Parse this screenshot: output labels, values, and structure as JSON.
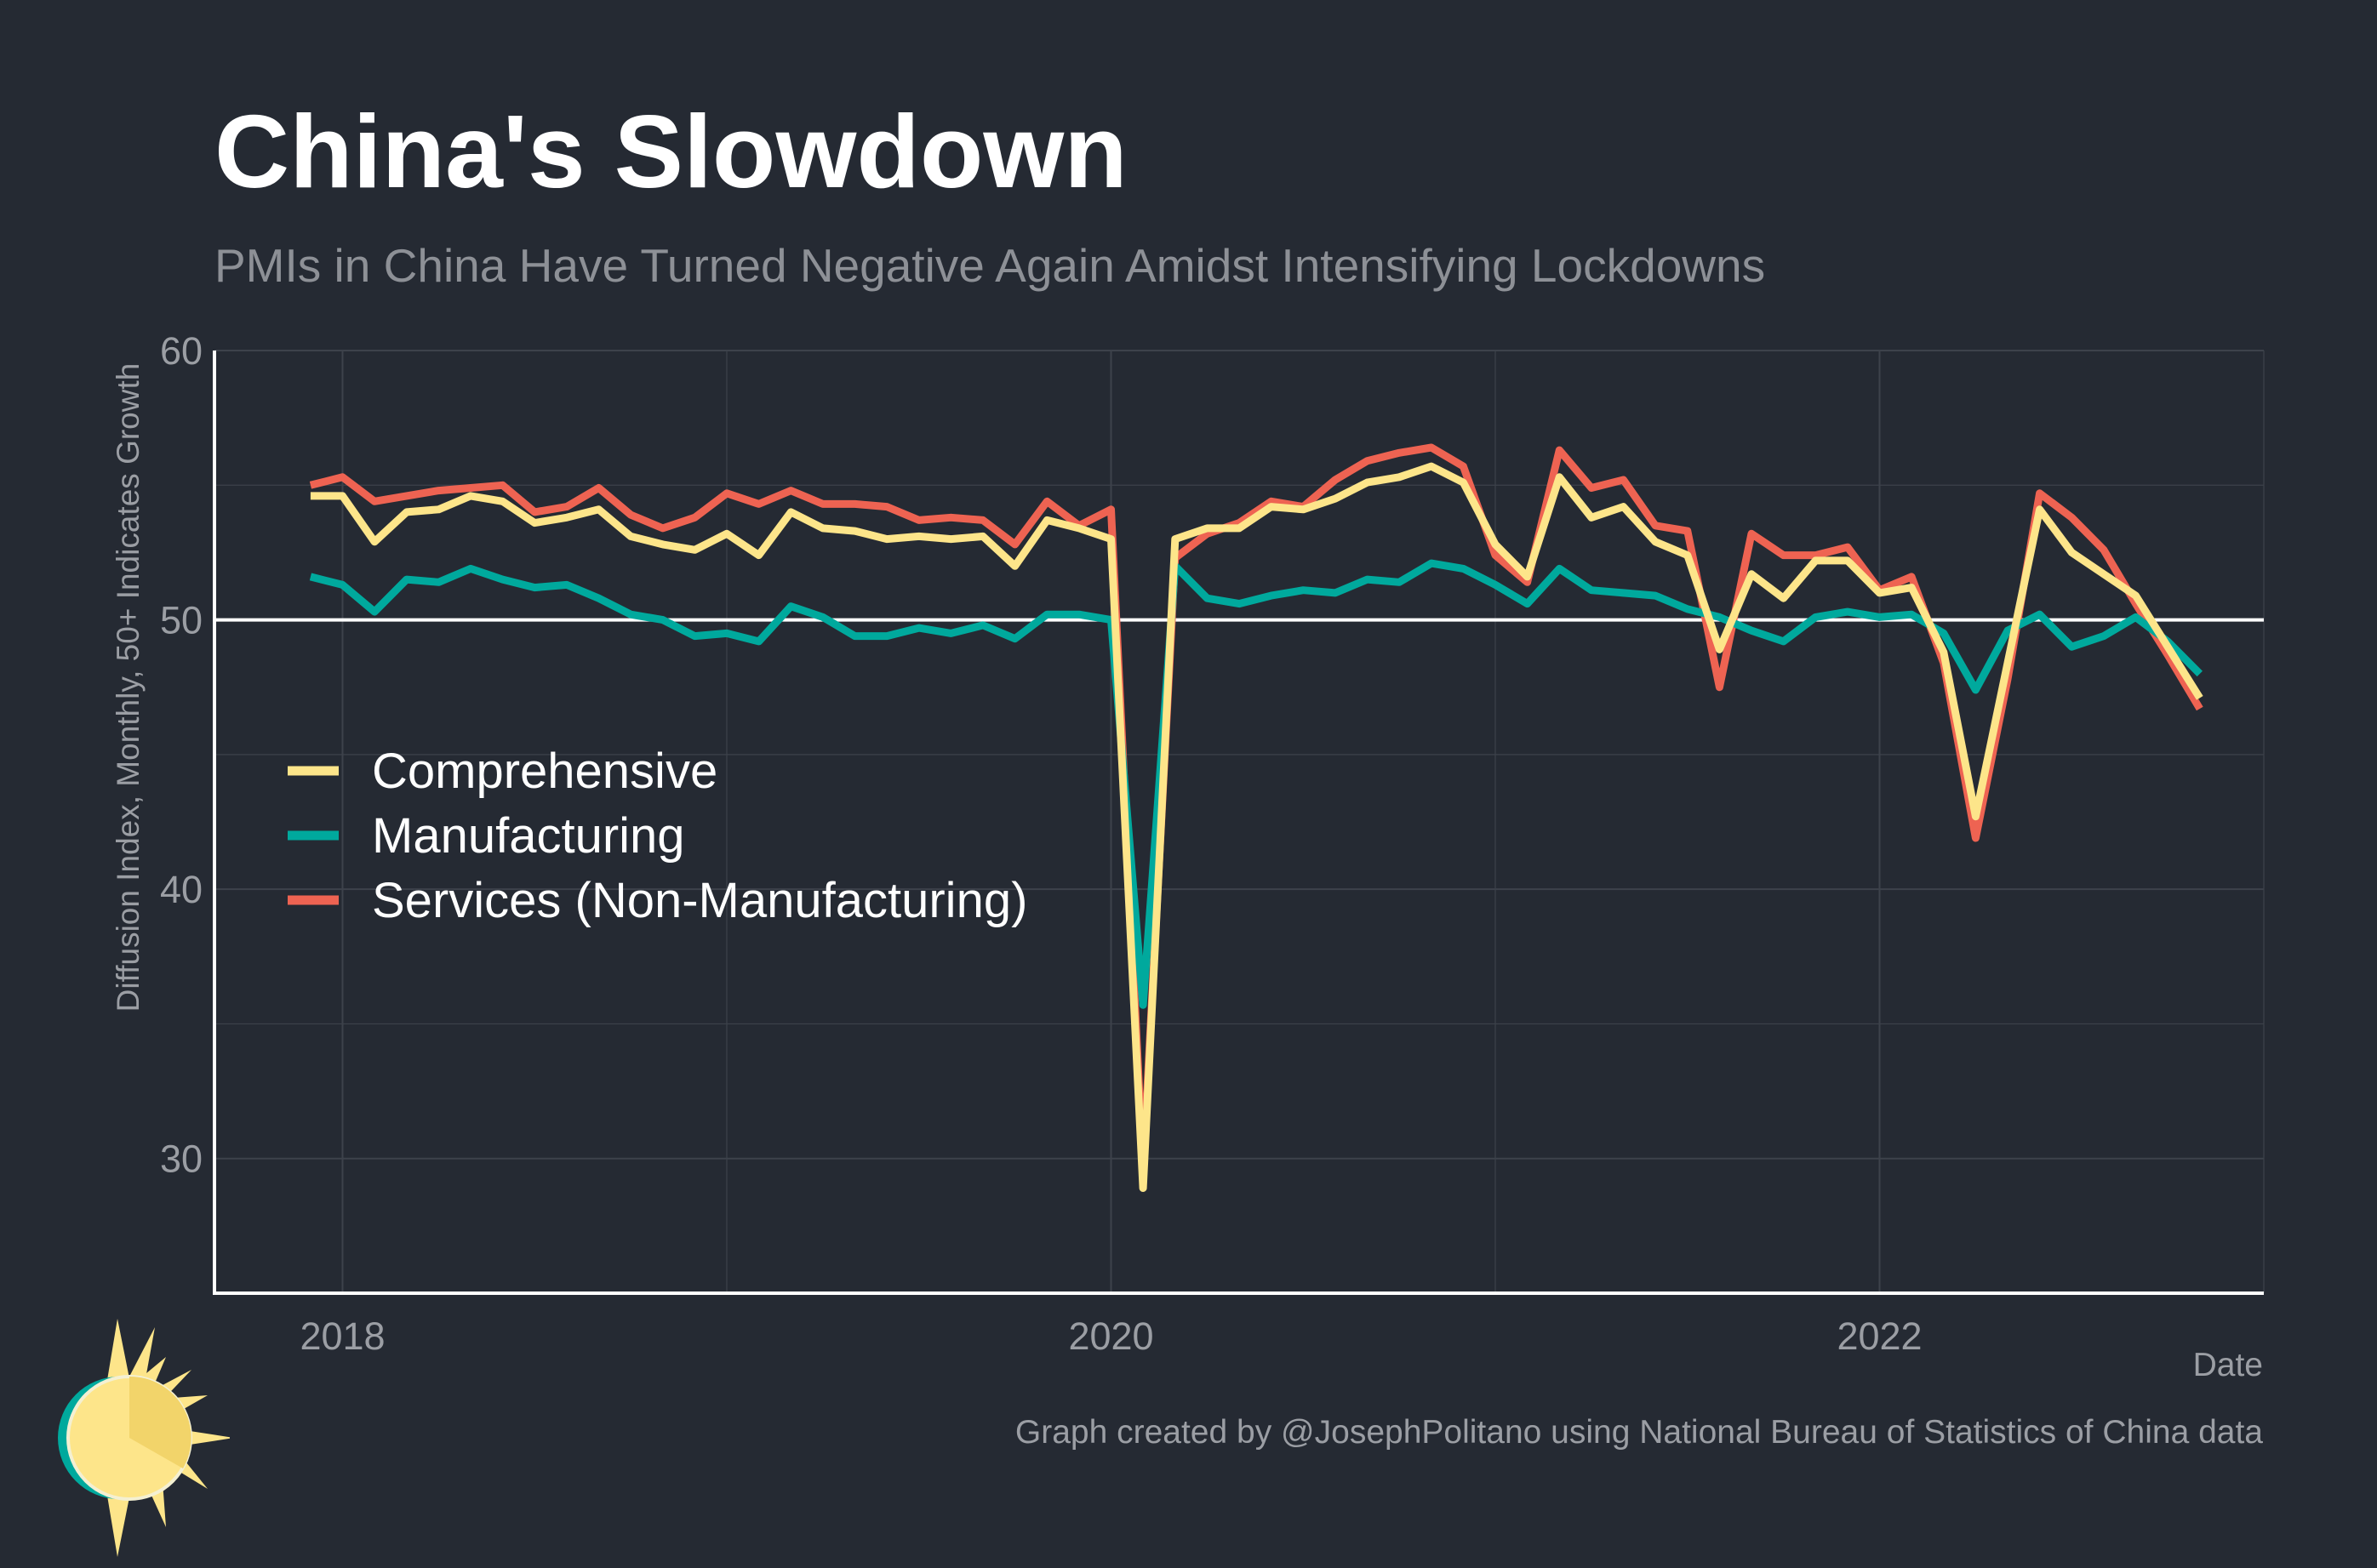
{
  "header": {
    "title": "China's Slowdown",
    "subtitle": "PMIs in China Have Turned Negative Again Amidst Intensifying Lockdowns"
  },
  "footer": {
    "caption": "Graph created by @JosephPolitano using National Bureau of Statistics of China data"
  },
  "logo": {
    "icon": "sun-logo-icon"
  },
  "colors": {
    "background": "#252a33",
    "grid": "#3d424b",
    "axis": "#ffffff",
    "reference_line": "#ffffff",
    "tick_text": "#9b9ea4"
  },
  "chart_data": {
    "type": "line",
    "title": "China's Slowdown",
    "subtitle": "PMIs in China Have Turned Negative Again Amidst Intensifying Lockdowns",
    "xlabel": "Date",
    "ylabel": "Diffusion Index, Monthly, 50+ Indicates Growth",
    "x_start": "2017-12",
    "x_frequency": "monthly",
    "xlim": [
      "2017-09",
      "2023-01"
    ],
    "ylim": [
      25,
      60
    ],
    "x_ticks": [
      "2018",
      "2020",
      "2022"
    ],
    "y_ticks": [
      30,
      40,
      50,
      60
    ],
    "reference_line": 50,
    "grid": true,
    "legend_position": "left-middle",
    "series": [
      {
        "name": "Comprehensive",
        "color": "#fde58a",
        "values": [
          54.6,
          54.6,
          52.9,
          54.0,
          54.1,
          54.6,
          54.4,
          53.6,
          53.8,
          54.1,
          53.1,
          52.8,
          52.6,
          53.2,
          52.4,
          54.0,
          53.4,
          53.3,
          53.0,
          53.1,
          53.0,
          53.1,
          52.0,
          53.7,
          53.4,
          53.0,
          28.9,
          53.0,
          53.4,
          53.4,
          54.2,
          54.1,
          54.5,
          55.1,
          55.3,
          55.7,
          55.1,
          52.8,
          51.6,
          55.3,
          53.8,
          54.2,
          52.9,
          52.4,
          48.9,
          51.7,
          50.8,
          52.2,
          52.2,
          51.0,
          51.2,
          48.8,
          42.7,
          48.4,
          54.1,
          52.5,
          51.7,
          50.9,
          49.0,
          47.1
        ]
      },
      {
        "name": "Manufacturing",
        "color": "#00a99d",
        "values": [
          51.6,
          51.3,
          50.3,
          51.5,
          51.4,
          51.9,
          51.5,
          51.2,
          51.3,
          50.8,
          50.2,
          50.0,
          49.4,
          49.5,
          49.2,
          50.5,
          50.1,
          49.4,
          49.4,
          49.7,
          49.5,
          49.8,
          49.3,
          50.2,
          50.2,
          50.0,
          35.7,
          52.0,
          50.8,
          50.6,
          50.9,
          51.1,
          51.0,
          51.5,
          51.4,
          52.1,
          51.9,
          51.3,
          50.6,
          51.9,
          51.1,
          51.0,
          50.9,
          50.4,
          50.1,
          49.6,
          49.2,
          50.1,
          50.3,
          50.1,
          50.2,
          49.5,
          47.4,
          49.6,
          50.2,
          49.0,
          49.4,
          50.1,
          49.2,
          48.0
        ]
      },
      {
        "name": "Services (Non-Manufacturing)",
        "color": "#ee6352",
        "values": [
          55.0,
          55.3,
          54.4,
          54.6,
          54.8,
          54.9,
          55.0,
          54.0,
          54.2,
          54.9,
          53.9,
          53.4,
          53.8,
          54.7,
          54.3,
          54.8,
          54.3,
          54.3,
          54.2,
          53.7,
          53.8,
          53.7,
          52.8,
          54.4,
          53.5,
          54.1,
          29.6,
          52.3,
          53.2,
          53.6,
          54.4,
          54.2,
          55.2,
          55.9,
          56.2,
          56.4,
          55.7,
          52.4,
          51.4,
          56.3,
          54.9,
          55.2,
          53.5,
          53.3,
          47.5,
          53.2,
          52.4,
          52.4,
          52.7,
          51.1,
          51.6,
          48.4,
          41.9,
          47.8,
          54.7,
          53.8,
          52.6,
          50.6,
          48.7,
          46.7
        ]
      }
    ]
  }
}
